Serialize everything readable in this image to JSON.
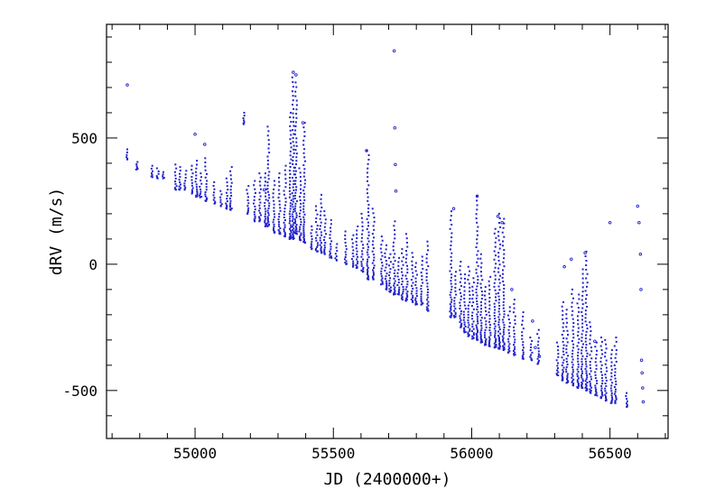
{
  "chart_data": {
    "type": "scatter",
    "title": "",
    "xlabel": "JD (2400000+)",
    "ylabel": "dRV (m/s)",
    "xlim": [
      54680,
      56710
    ],
    "ylim": [
      -690,
      950
    ],
    "x_major_ticks": [
      55000,
      55500,
      56000,
      56500
    ],
    "x_tick_labels": [
      "55000",
      "55500",
      "56000",
      "56500"
    ],
    "x_minor_step": 100,
    "y_major_ticks": [
      -500,
      0,
      500
    ],
    "y_tick_labels": [
      "-500",
      "0",
      "500"
    ],
    "y_minor_step": 100,
    "grid": false,
    "legend": "none",
    "marker_color": "#2222cc",
    "axis_color": "#000000",
    "series": [
      {
        "marker": "point",
        "clusters": [
          [
            54755,
            455,
            415
          ],
          [
            54790,
            405,
            375
          ],
          [
            54845,
            390,
            345
          ],
          [
            54865,
            380,
            340
          ],
          [
            54885,
            365,
            340
          ],
          [
            54930,
            395,
            295
          ],
          [
            54945,
            385,
            295
          ],
          [
            54965,
            370,
            295
          ],
          [
            54990,
            390,
            280
          ],
          [
            55005,
            410,
            270
          ],
          [
            55020,
            360,
            265
          ],
          [
            55040,
            420,
            250
          ],
          [
            55070,
            325,
            240
          ],
          [
            55095,
            290,
            230
          ],
          [
            55115,
            340,
            220
          ],
          [
            55130,
            385,
            215
          ],
          [
            55175,
            600,
            555
          ],
          [
            55190,
            310,
            200
          ],
          [
            55215,
            330,
            170
          ],
          [
            55235,
            360,
            170
          ],
          [
            55255,
            360,
            150
          ],
          [
            55265,
            545,
            150
          ],
          [
            55285,
            330,
            125
          ],
          [
            55305,
            360,
            120
          ],
          [
            55325,
            390,
            110
          ],
          [
            55345,
            600,
            100
          ],
          [
            55355,
            740,
            100
          ],
          [
            55365,
            720,
            120
          ],
          [
            55380,
            380,
            95
          ],
          [
            55395,
            560,
            85
          ],
          [
            55420,
            150,
            60
          ],
          [
            55440,
            230,
            50
          ],
          [
            55455,
            275,
            45
          ],
          [
            55470,
            210,
            40
          ],
          [
            55490,
            175,
            25
          ],
          [
            55510,
            80,
            15
          ],
          [
            55545,
            130,
            0
          ],
          [
            55570,
            115,
            -10
          ],
          [
            55585,
            150,
            -15
          ],
          [
            55605,
            200,
            -30
          ],
          [
            55625,
            450,
            -60
          ],
          [
            55645,
            220,
            -60
          ],
          [
            55675,
            110,
            -80
          ],
          [
            55690,
            75,
            -100
          ],
          [
            55705,
            40,
            -110
          ],
          [
            55720,
            170,
            -120
          ],
          [
            55735,
            25,
            -120
          ],
          [
            55750,
            60,
            -140
          ],
          [
            55765,
            120,
            -145
          ],
          [
            55785,
            45,
            -150
          ],
          [
            55800,
            5,
            -160
          ],
          [
            55820,
            30,
            -160
          ],
          [
            55840,
            90,
            -185
          ],
          [
            55925,
            210,
            -210
          ],
          [
            55940,
            -30,
            -210
          ],
          [
            55960,
            10,
            -250
          ],
          [
            55975,
            -40,
            -270
          ],
          [
            55990,
            -10,
            -285
          ],
          [
            56005,
            -55,
            -295
          ],
          [
            56020,
            270,
            -300
          ],
          [
            56035,
            40,
            -310
          ],
          [
            56050,
            -90,
            -320
          ],
          [
            56065,
            -50,
            -325
          ],
          [
            56085,
            140,
            -330
          ],
          [
            56100,
            200,
            -335
          ],
          [
            56115,
            180,
            -340
          ],
          [
            56135,
            -170,
            -350
          ],
          [
            56155,
            -140,
            -360
          ],
          [
            56185,
            -190,
            -375
          ],
          [
            56215,
            -290,
            -380
          ],
          [
            56240,
            -260,
            -395
          ],
          [
            56310,
            -310,
            -440
          ],
          [
            56330,
            -150,
            -460
          ],
          [
            56345,
            -180,
            -470
          ],
          [
            56365,
            -100,
            -480
          ],
          [
            56385,
            -120,
            -490
          ],
          [
            56400,
            -20,
            -490
          ],
          [
            56415,
            50,
            -500
          ],
          [
            56430,
            -230,
            -510
          ],
          [
            56450,
            -310,
            -520
          ],
          [
            56470,
            -290,
            -530
          ],
          [
            56485,
            -300,
            -540
          ],
          [
            56505,
            -340,
            -550
          ],
          [
            56520,
            -290,
            -550
          ],
          [
            56560,
            -510,
            -565
          ]
        ],
        "outliers": [
          [
            54755,
            710
          ],
          [
            55000,
            515
          ],
          [
            55035,
            475
          ],
          [
            55005,
            270
          ],
          [
            55250,
            295
          ],
          [
            55355,
            760
          ],
          [
            55365,
            750
          ],
          [
            55390,
            560
          ],
          [
            55620,
            450
          ],
          [
            55720,
            845
          ],
          [
            55722,
            540
          ],
          [
            55724,
            395
          ],
          [
            55726,
            290
          ],
          [
            55935,
            220
          ],
          [
            56020,
            270
          ],
          [
            56095,
            190
          ],
          [
            56110,
            165
          ],
          [
            56145,
            -100
          ],
          [
            56220,
            -225
          ],
          [
            56230,
            -330
          ],
          [
            56245,
            -365
          ],
          [
            56335,
            -10
          ],
          [
            56360,
            20
          ],
          [
            56410,
            45
          ],
          [
            56445,
            -305
          ],
          [
            56500,
            165
          ],
          [
            56600,
            230
          ],
          [
            56605,
            165
          ],
          [
            56610,
            40
          ],
          [
            56612,
            -100
          ],
          [
            56614,
            -380
          ],
          [
            56616,
            -430
          ],
          [
            56618,
            -490
          ],
          [
            56620,
            -545
          ]
        ]
      }
    ]
  }
}
